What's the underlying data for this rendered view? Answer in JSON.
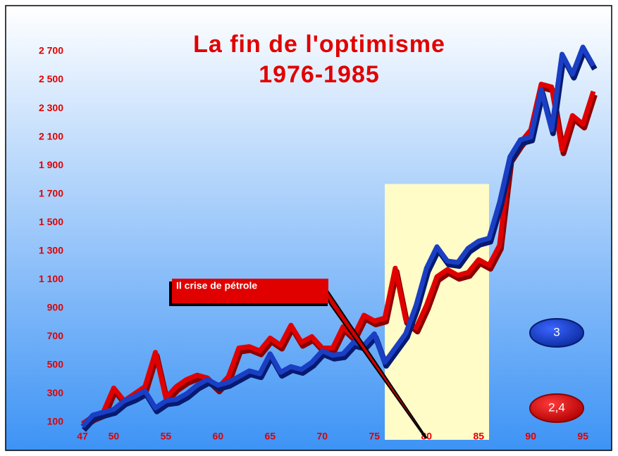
{
  "chart_data": {
    "type": "line",
    "title": "La fin de l'optimisme",
    "subtitle": "1976-1985",
    "x": [
      47,
      48,
      49,
      50,
      51,
      52,
      53,
      54,
      55,
      56,
      57,
      58,
      59,
      60,
      61,
      62,
      63,
      64,
      65,
      66,
      67,
      68,
      69,
      70,
      71,
      72,
      73,
      74,
      75,
      76,
      77,
      78,
      79,
      80,
      81,
      82,
      83,
      84,
      85,
      86,
      87,
      88,
      89,
      90,
      91,
      92,
      93,
      94,
      95,
      96
    ],
    "series": [
      {
        "name": "2,4",
        "color": "#e00000",
        "values": [
          90,
          140,
          170,
          340,
          250,
          300,
          350,
          590,
          270,
          350,
          400,
          430,
          410,
          340,
          420,
          620,
          630,
          600,
          690,
          640,
          780,
          660,
          700,
          620,
          620,
          770,
          700,
          850,
          810,
          830,
          1180,
          820,
          760,
          920,
          1120,
          1170,
          1130,
          1150,
          1240,
          1200,
          1340,
          1950,
          2060,
          2150,
          2470,
          2450,
          2010,
          2250,
          2190,
          2420
        ]
      },
      {
        "name": "3",
        "color": "#1a3fc4",
        "values": [
          70,
          150,
          170,
          190,
          250,
          280,
          320,
          200,
          250,
          260,
          300,
          360,
          400,
          360,
          380,
          420,
          460,
          440,
          580,
          450,
          490,
          470,
          520,
          600,
          570,
          580,
          660,
          640,
          720,
          520,
          620,
          720,
          920,
          1180,
          1330,
          1230,
          1220,
          1320,
          1370,
          1390,
          1640,
          1960,
          2080,
          2100,
          2430,
          2150,
          2680,
          2540,
          2730,
          2600
        ]
      }
    ],
    "xlim": [
      47,
      96
    ],
    "xticks": [
      47,
      50,
      55,
      60,
      65,
      70,
      75,
      80,
      85,
      90,
      95
    ],
    "ylim": [
      100,
      2700
    ],
    "yticks": [
      100,
      300,
      500,
      700,
      900,
      {
        "value": 1100,
        "label": "1 100"
      },
      {
        "value": 1300,
        "label": "1 300"
      },
      {
        "value": 1500,
        "label": "1 500"
      },
      {
        "value": 1700,
        "label": "1 700"
      },
      {
        "value": 1900,
        "label": "1 900"
      },
      {
        "value": 2100,
        "label": "2 100"
      },
      {
        "value": 2300,
        "label": "2 300"
      },
      {
        "value": 2500,
        "label": "2 500"
      },
      {
        "value": 2700,
        "label": "2 700"
      }
    ],
    "highlight": {
      "x": [
        76,
        86
      ],
      "top": 1770
    },
    "annotation": {
      "text": "Il crise de pétrole",
      "x": 80
    }
  }
}
